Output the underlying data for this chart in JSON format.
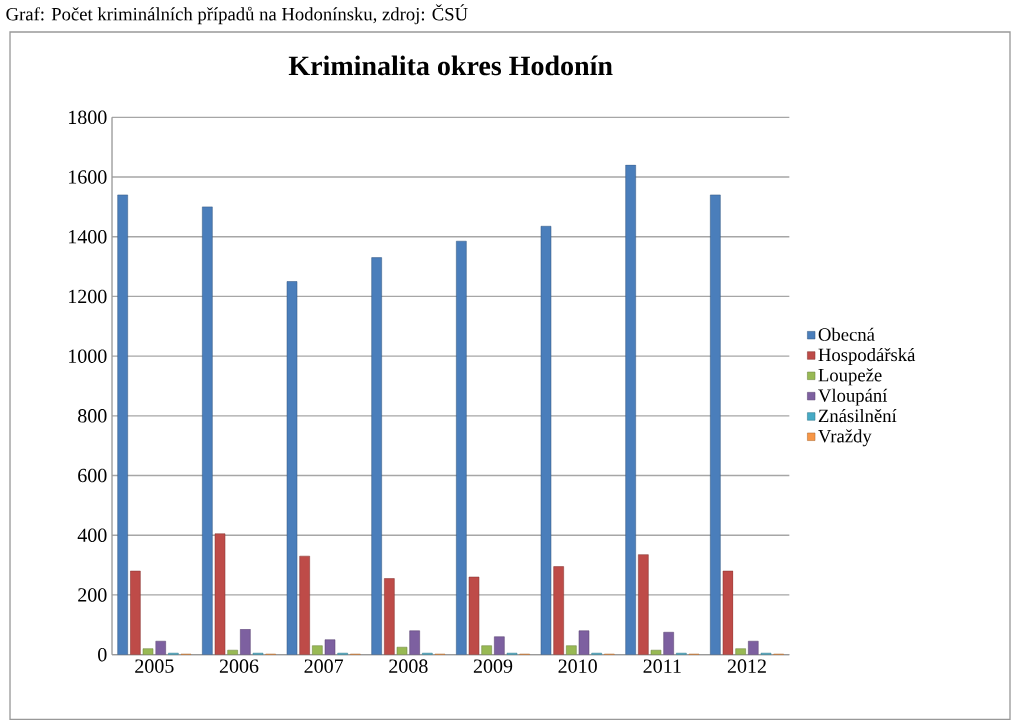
{
  "chart_data": {
    "type": "bar",
    "title": "Kriminalita okres Hodonín",
    "annotations": [
      "Graf: Počet kriminálních případů na Hodonínsku, zdroj: ČSÚ"
    ],
    "categories": [
      "2005",
      "2006",
      "2007",
      "2008",
      "2009",
      "2010",
      "2011",
      "2012"
    ],
    "series": [
      {
        "name": "Obecná",
        "color": "#4a7ebb",
        "values": [
          1540,
          1500,
          1250,
          1330,
          1385,
          1435,
          1640,
          1540
        ]
      },
      {
        "name": "Hospodářská",
        "color": "#be4b48",
        "values": [
          280,
          405,
          330,
          255,
          260,
          295,
          335,
          280
        ]
      },
      {
        "name": "Loupeže",
        "color": "#98b954",
        "values": [
          20,
          15,
          30,
          25,
          30,
          30,
          15,
          20
        ]
      },
      {
        "name": "Vloupání",
        "color": "#7d60a0",
        "values": [
          45,
          85,
          50,
          80,
          60,
          80,
          75,
          45
        ]
      },
      {
        "name": "Znásilnění",
        "color": "#46aac5",
        "values": [
          5,
          5,
          5,
          5,
          5,
          5,
          5,
          5
        ]
      },
      {
        "name": "Vraždy",
        "color": "#f79646",
        "values": [
          2,
          2,
          2,
          2,
          2,
          2,
          2,
          2
        ]
      }
    ],
    "ylim": [
      0,
      1800
    ],
    "yticks": [
      0,
      200,
      400,
      600,
      800,
      1000,
      1200,
      1400,
      1600,
      1800
    ],
    "grid": "y",
    "legend": "right"
  }
}
